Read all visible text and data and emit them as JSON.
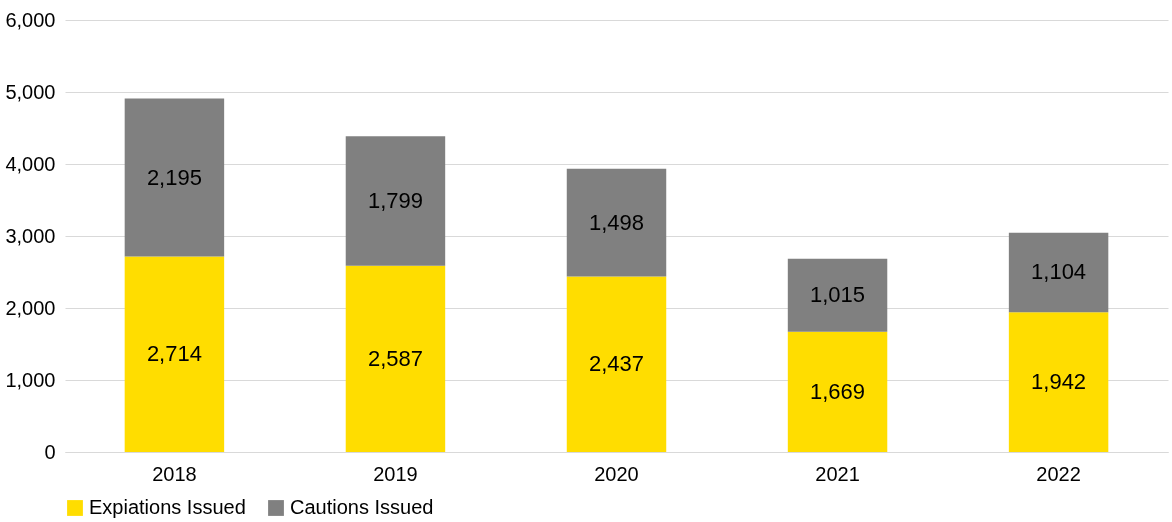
{
  "chart_data": {
    "type": "bar",
    "stacked": true,
    "categories": [
      "2018",
      "2019",
      "2020",
      "2021",
      "2022"
    ],
    "series": [
      {
        "name": "Expiations Issued",
        "color": "#ffdd00",
        "values": [
          2714,
          2587,
          2437,
          1669,
          1942
        ],
        "value_labels": [
          "2,714",
          "2,587",
          "2,437",
          "1,669",
          "1,942"
        ]
      },
      {
        "name": "Cautions Issued",
        "color": "#808080",
        "values": [
          2195,
          1799,
          1498,
          1015,
          1104
        ],
        "value_labels": [
          "2,195",
          "1,799",
          "1,498",
          "1,015",
          "1,104"
        ]
      }
    ],
    "ylim": [
      0,
      6000
    ],
    "yticks": [
      0,
      {
        "value": 1000,
        "label": "1,000"
      },
      {
        "value": 2000,
        "label": "2,000"
      },
      {
        "value": 3000,
        "label": "3,000"
      },
      {
        "value": 4000,
        "label": "4,000"
      },
      {
        "value": 5000,
        "label": "5,000"
      },
      {
        "value": 6000,
        "label": "6,000"
      }
    ],
    "grid": "y",
    "legend": "bottom"
  }
}
